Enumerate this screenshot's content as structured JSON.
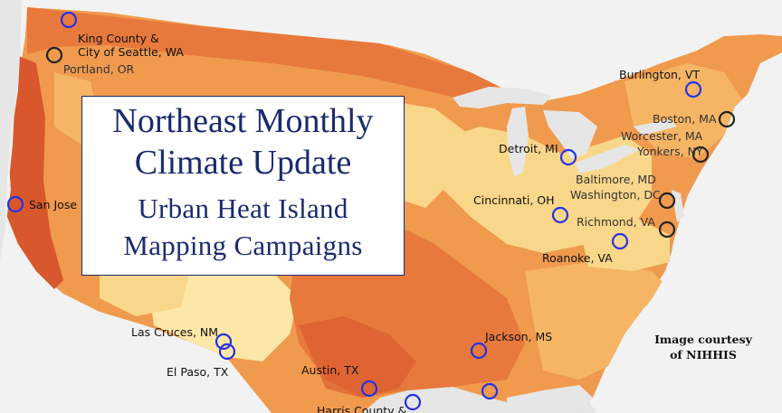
{
  "title": {
    "line1": "Northeast Monthly",
    "line2": "Climate Update",
    "line3": "Urban Heat Island",
    "line4": "Mapping Campaigns"
  },
  "credit": "Image courtesy of NIHHIS",
  "colors": {
    "ocean": "#e6e6e6",
    "land_outside": "#f2f2f2",
    "heat_light": "#fde7a8",
    "heat_pale": "#f9d78a",
    "heat_mid": "#f5b565",
    "heat_orange": "#f09a4e",
    "heat_dark": "#e7793c",
    "heat_deep": "#d8572d",
    "marker_blue": "#2433e6",
    "marker_black": "#222222",
    "title_text": "#1a2a6e"
  },
  "locations": [
    {
      "label": "King County &\nCity of Seattle, WA",
      "marker": "blue"
    },
    {
      "label": "Portland, OR",
      "marker": "black"
    },
    {
      "label": "San Jose",
      "marker": "blue"
    },
    {
      "label": "Las Cruces, NM",
      "marker": "blue"
    },
    {
      "label": "El Paso, TX",
      "marker": "blue"
    },
    {
      "label": "Austin, TX",
      "marker": "blue"
    },
    {
      "label": "Harris County &",
      "marker": "blue"
    },
    {
      "label": "Jackson, MS",
      "marker": "blue"
    },
    {
      "label": "",
      "marker": "blue"
    },
    {
      "label": "Detroit, MI",
      "marker": "blue"
    },
    {
      "label": "Cincinnati, OH",
      "marker": "blue"
    },
    {
      "label": "Roanoke, VA",
      "marker": "blue"
    },
    {
      "label": "Richmond, VA",
      "marker": "black"
    },
    {
      "label": "Baltimore, MD",
      "marker": "black"
    },
    {
      "label": "Washington, DC",
      "marker": "black"
    },
    {
      "label": "Burlington, VT",
      "marker": "blue"
    },
    {
      "label": "Boston, MA",
      "marker": "black"
    },
    {
      "label": "Worcester, MA",
      "marker": "black"
    },
    {
      "label": "Yonkers, NY",
      "marker": "black"
    }
  ]
}
